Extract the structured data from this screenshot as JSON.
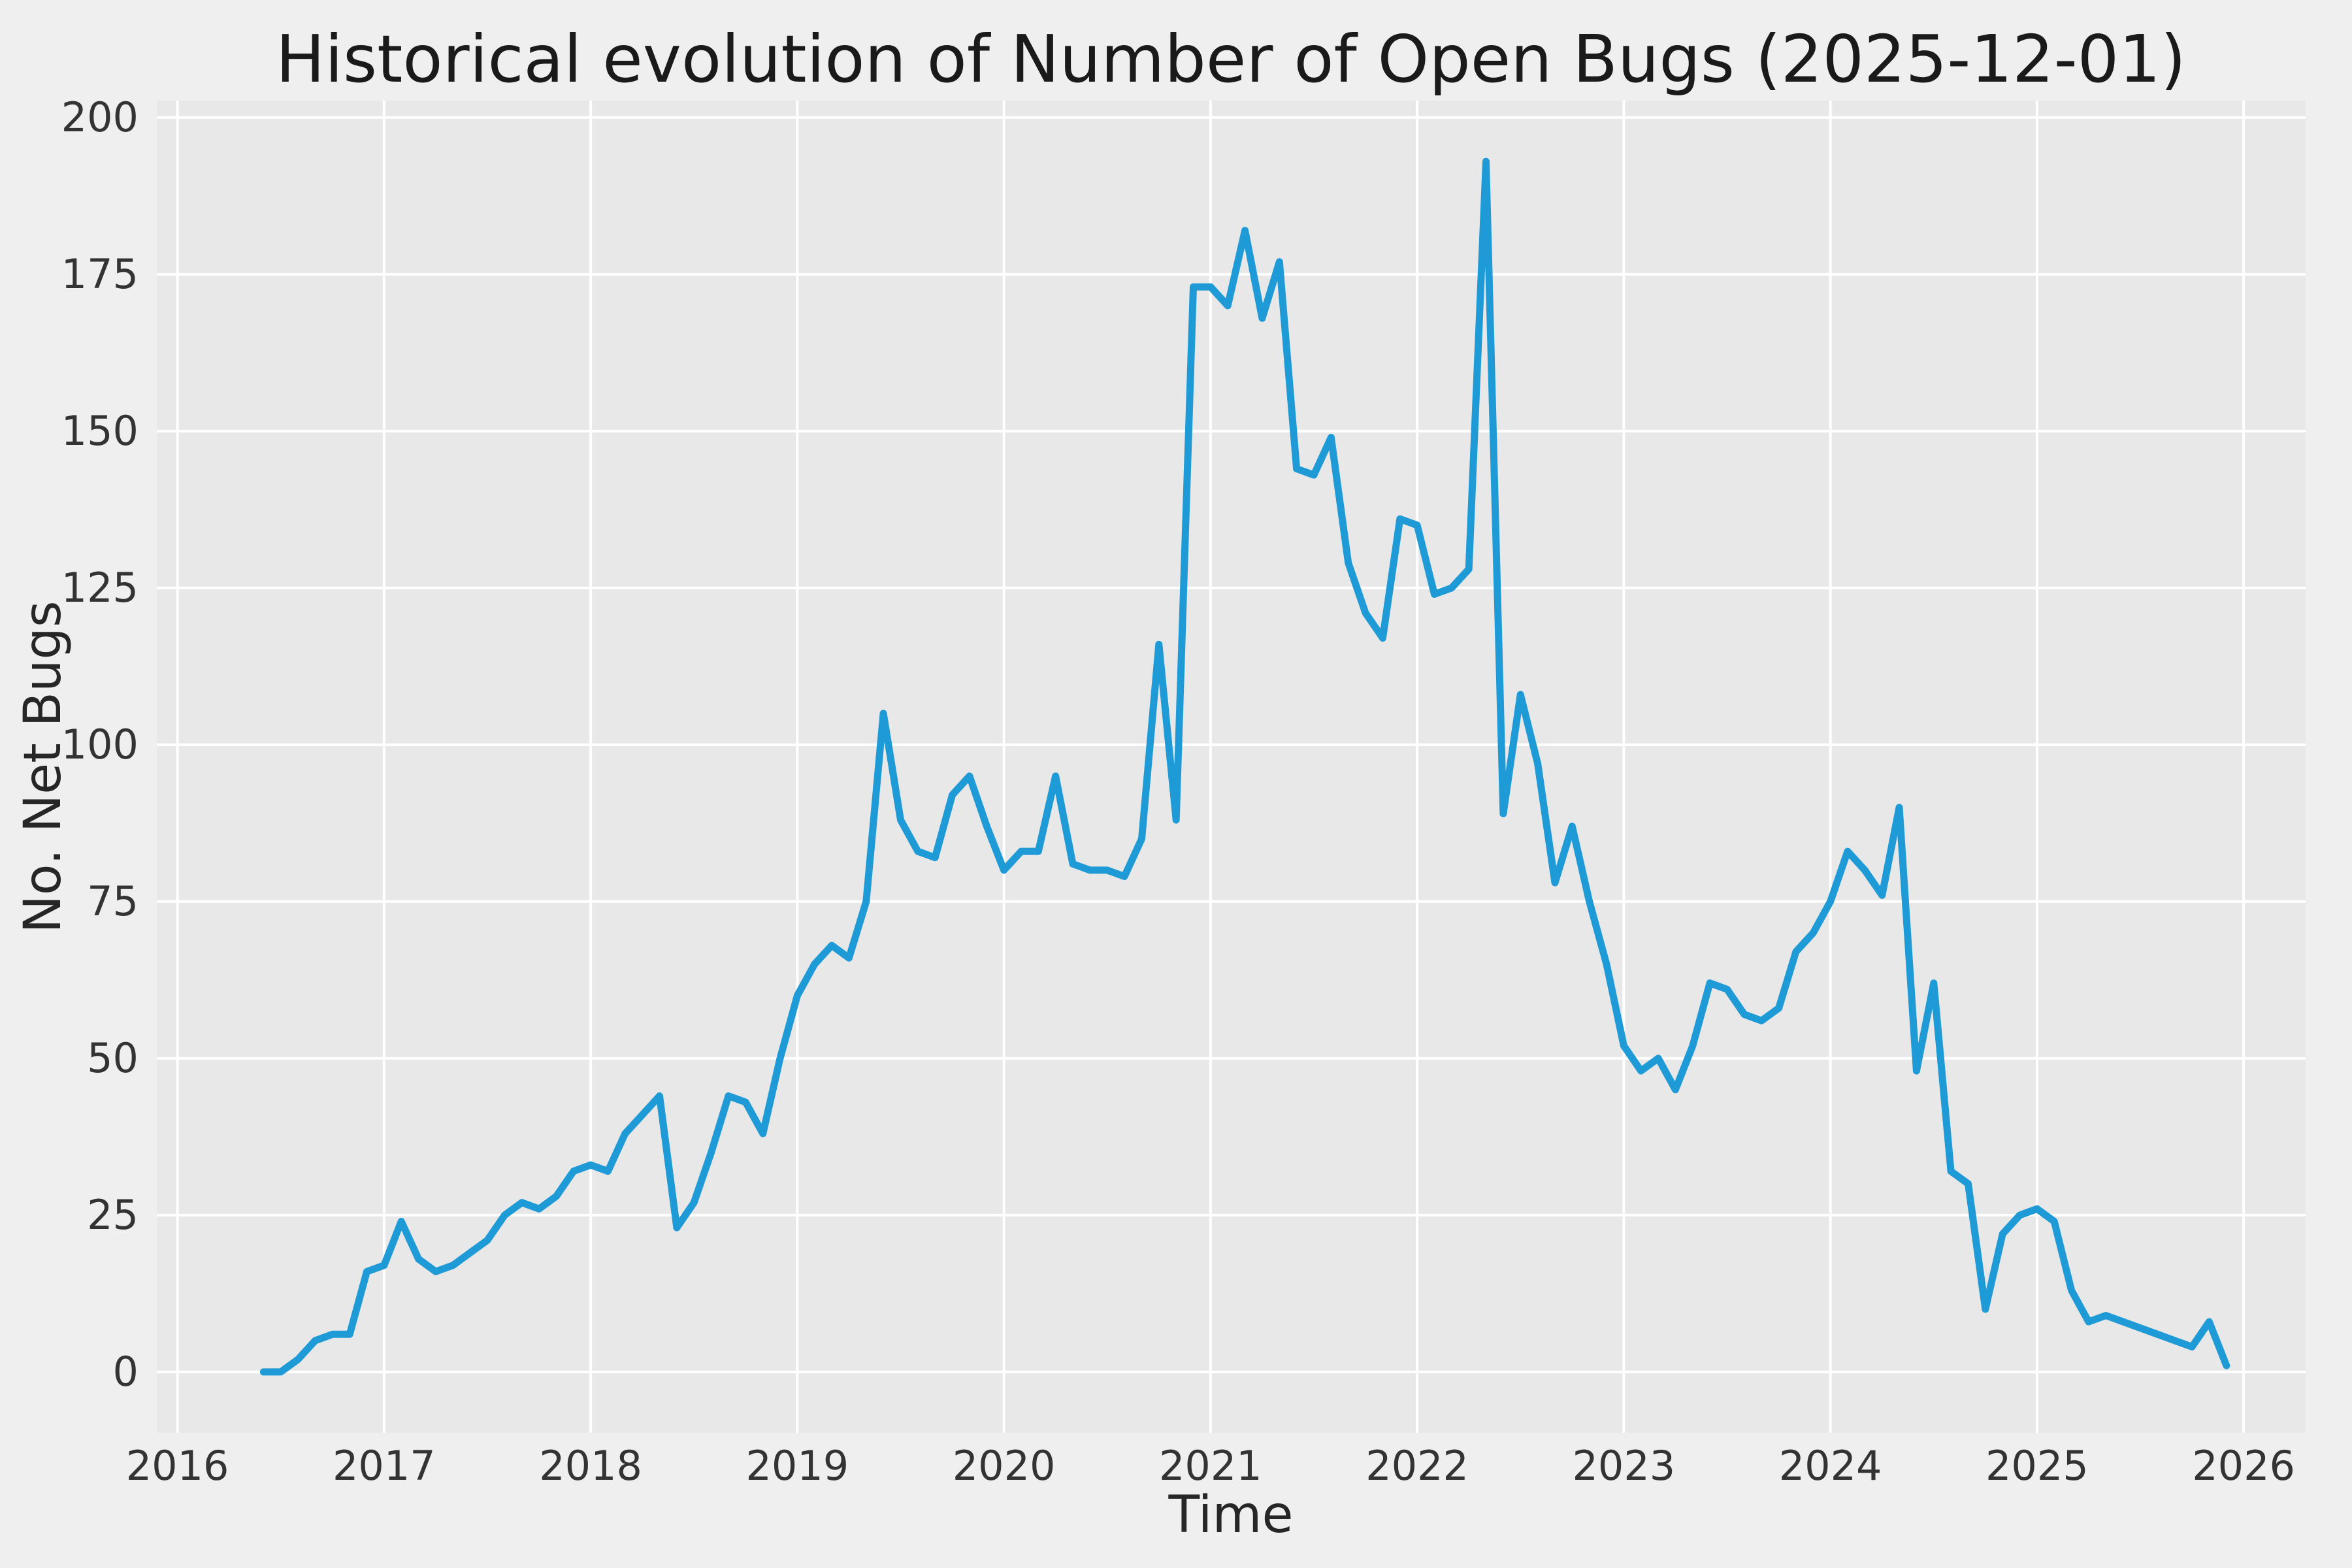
{
  "chart_data": {
    "type": "line",
    "title": "Historical evolution of Number of Open Bugs (2025-12-01)",
    "xlabel": "Time",
    "ylabel": "No. Net Bugs",
    "xlim": [
      2015.9,
      2026.3
    ],
    "ylim": [
      -9.7,
      202.7
    ],
    "x_ticks": [
      2016,
      2017,
      2018,
      2019,
      2020,
      2021,
      2022,
      2023,
      2024,
      2025,
      2026
    ],
    "y_ticks": [
      0,
      25,
      50,
      75,
      100,
      125,
      150,
      175,
      200
    ],
    "grid": true,
    "legend": "none",
    "line_color": "#1e9ad6",
    "colors": {
      "figure_background": "#efefef",
      "axes_background": "#e8e8e8",
      "grid": "#ffffff"
    },
    "series": [
      {
        "name": "open-bugs",
        "start": "2016-06",
        "frequency": "monthly",
        "values": [
          0,
          0,
          2,
          5,
          6,
          6,
          16,
          17,
          24,
          18,
          16,
          17,
          19,
          21,
          25,
          27,
          26,
          28,
          32,
          33,
          32,
          38,
          41,
          44,
          23,
          27,
          35,
          44,
          43,
          38,
          50,
          60,
          65,
          68,
          66,
          75,
          105,
          88,
          83,
          82,
          92,
          95,
          87,
          80,
          83,
          83,
          95,
          81,
          80,
          80,
          79,
          85,
          116,
          88,
          173,
          173,
          170,
          182,
          168,
          177,
          144,
          143,
          149,
          129,
          121,
          117,
          136,
          135,
          124,
          125,
          128,
          193,
          89,
          108,
          97,
          78,
          87,
          75,
          65,
          52,
          48,
          50,
          45,
          52,
          62,
          61,
          57,
          56,
          58,
          67,
          70,
          75,
          83,
          80,
          76,
          90,
          48,
          62,
          32,
          30,
          10,
          22,
          25,
          26,
          24,
          13,
          8,
          9,
          8,
          7,
          6,
          5,
          4,
          8,
          1
        ]
      }
    ]
  }
}
